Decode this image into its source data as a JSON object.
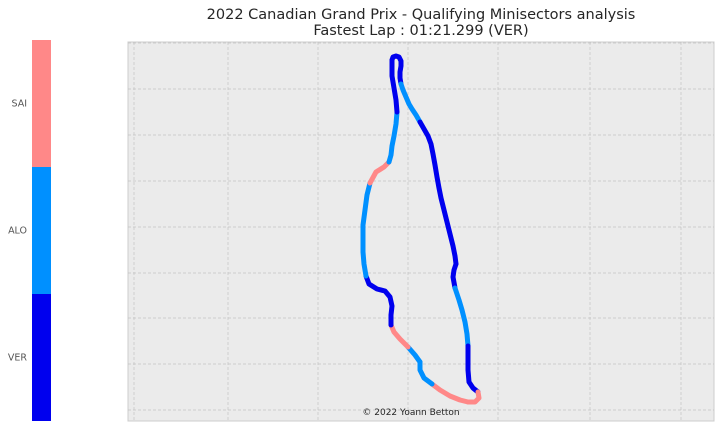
{
  "title_line1": "2022 Canadian Grand Prix - Qualifying Minisectors analysis",
  "title_line2": "Fastest Lap : 01:21.299 (VER)",
  "credit": "© 2022 Yoann Betton",
  "chart_data": {
    "type": "line",
    "title": "2022 Canadian Grand Prix - Qualifying Minisectors analysis\nFastest Lap : 01:21.299 (VER)",
    "xlabel": "",
    "ylabel": "",
    "grid": true,
    "legend": "colorbar-left",
    "drivers": [
      {
        "name": "VER",
        "color": "#0000ee"
      },
      {
        "name": "ALO",
        "color": "#0090ff"
      },
      {
        "name": "SAI",
        "color": "#ff8888"
      }
    ],
    "track_points": [
      [
        392,
        60
      ],
      [
        393,
        57
      ],
      [
        396,
        56
      ],
      [
        399,
        57
      ],
      [
        401,
        61
      ],
      [
        401,
        66
      ],
      [
        400,
        72
      ],
      [
        400,
        78
      ],
      [
        401,
        84
      ],
      [
        403,
        90
      ],
      [
        406,
        97
      ],
      [
        409,
        104
      ],
      [
        412,
        109
      ],
      [
        416,
        115
      ],
      [
        420,
        122
      ],
      [
        424,
        129
      ],
      [
        428,
        136
      ],
      [
        431,
        144
      ],
      [
        433,
        154
      ],
      [
        435,
        165
      ],
      [
        437,
        177
      ],
      [
        439,
        188
      ],
      [
        441,
        198
      ],
      [
        444,
        210
      ],
      [
        447,
        222
      ],
      [
        450,
        234
      ],
      [
        453,
        246
      ],
      [
        455,
        256
      ],
      [
        456,
        264
      ],
      [
        454,
        270
      ],
      [
        453,
        277
      ],
      [
        455,
        288
      ],
      [
        459,
        300
      ],
      [
        462,
        310
      ],
      [
        465,
        322
      ],
      [
        467,
        334
      ],
      [
        468,
        346
      ],
      [
        468,
        358
      ],
      [
        468,
        370
      ],
      [
        469,
        382
      ],
      [
        473,
        388
      ],
      [
        478,
        392
      ],
      [
        479,
        398
      ],
      [
        475,
        402
      ],
      [
        468,
        402
      ],
      [
        460,
        400
      ],
      [
        450,
        396
      ],
      [
        440,
        390
      ],
      [
        432,
        384
      ],
      [
        424,
        378
      ],
      [
        420,
        370
      ],
      [
        420,
        362
      ],
      [
        415,
        355
      ],
      [
        408,
        347
      ],
      [
        400,
        339
      ],
      [
        394,
        332
      ],
      [
        391,
        325
      ],
      [
        391,
        315
      ],
      [
        392,
        306
      ],
      [
        390,
        297
      ],
      [
        385,
        291
      ],
      [
        377,
        289
      ],
      [
        369,
        284
      ],
      [
        366,
        276
      ],
      [
        364,
        264
      ],
      [
        363,
        252
      ],
      [
        363,
        240
      ],
      [
        363,
        225
      ],
      [
        365,
        210
      ],
      [
        367,
        195
      ],
      [
        370,
        183
      ],
      [
        376,
        172
      ],
      [
        384,
        167
      ],
      [
        389,
        162
      ],
      [
        391,
        155
      ],
      [
        392,
        146
      ],
      [
        394,
        136
      ],
      [
        396,
        124
      ],
      [
        397,
        112
      ],
      [
        396,
        100
      ],
      [
        394,
        88
      ],
      [
        392,
        76
      ],
      [
        392,
        66
      ],
      [
        392,
        60
      ]
    ],
    "minisectors": [
      {
        "from": 0,
        "to": 8,
        "fastest": "VER"
      },
      {
        "from": 8,
        "to": 14,
        "fastest": "ALO"
      },
      {
        "from": 14,
        "to": 28,
        "fastest": "VER"
      },
      {
        "from": 28,
        "to": 31,
        "fastest": "VER"
      },
      {
        "from": 31,
        "to": 36,
        "fastest": "ALO"
      },
      {
        "from": 36,
        "to": 41,
        "fastest": "VER"
      },
      {
        "from": 41,
        "to": 44,
        "fastest": "SAI"
      },
      {
        "from": 44,
        "to": 48,
        "fastest": "SAI"
      },
      {
        "from": 48,
        "to": 51,
        "fastest": "ALO"
      },
      {
        "from": 51,
        "to": 53,
        "fastest": "ALO"
      },
      {
        "from": 53,
        "to": 56,
        "fastest": "SAI"
      },
      {
        "from": 56,
        "to": 63,
        "fastest": "VER"
      },
      {
        "from": 63,
        "to": 70,
        "fastest": "ALO"
      },
      {
        "from": 70,
        "to": 73,
        "fastest": "SAI"
      },
      {
        "from": 73,
        "to": 78,
        "fastest": "ALO"
      },
      {
        "from": 78,
        "to": 83,
        "fastest": "VER"
      }
    ]
  }
}
